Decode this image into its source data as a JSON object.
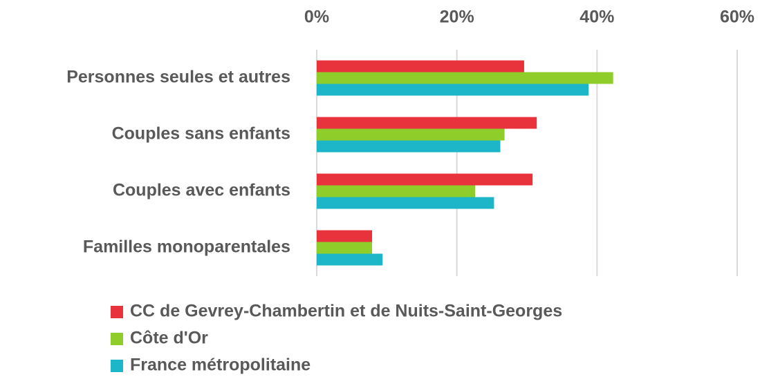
{
  "chart_data": {
    "type": "hbar",
    "categories": [
      "Personnes seules et autres",
      "Couples sans enfants",
      "Couples avec enfants",
      "Familles monoparentales"
    ],
    "series": [
      {
        "name": "CC de Gevrey-Chambertin et de Nuits-Saint-Georges",
        "color": "#e8323c",
        "values": [
          29.6,
          31.4,
          30.8,
          7.9
        ]
      },
      {
        "name": "Côte d'Or",
        "color": "#8fce2a",
        "values": [
          42.3,
          26.8,
          22.6,
          7.9
        ]
      },
      {
        "name": "France métropolitaine",
        "color": "#1db5c8",
        "values": [
          38.8,
          26.2,
          25.3,
          9.4
        ]
      }
    ],
    "xlim": [
      0,
      60
    ],
    "xticks": [
      {
        "value": 0,
        "label": "0%"
      },
      {
        "value": 20,
        "label": "20%"
      },
      {
        "value": 40,
        "label": "40%"
      },
      {
        "value": 60,
        "label": "60%"
      }
    ],
    "grid": true
  }
}
